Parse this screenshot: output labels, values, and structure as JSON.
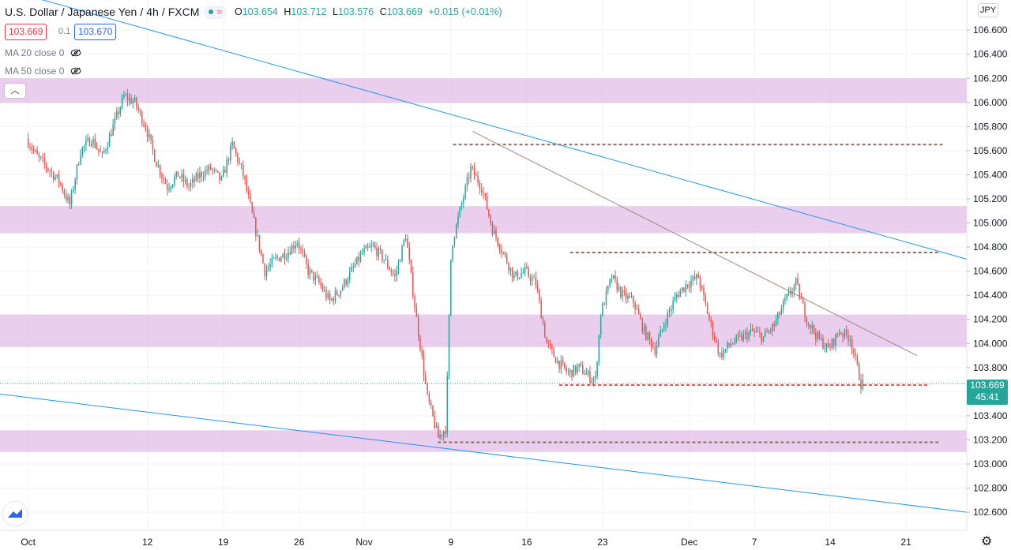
{
  "header": {
    "symbol": "U.S. Dollar / Japanese Yen",
    "interval": "4h",
    "source": "FXCM",
    "open_label": "O",
    "open": "103.654",
    "high_label": "H",
    "high": "103.712",
    "low_label": "L",
    "low": "103.576",
    "close_label": "C",
    "close": "103.669",
    "change": "+0.015 (+0.01%)"
  },
  "trade": {
    "sell": "103.669",
    "spread": "0.1",
    "buy": "103.670"
  },
  "indicators": [
    {
      "label": "MA 20 close 0"
    },
    {
      "label": "MA 50 close 0"
    }
  ],
  "currency": "JPY",
  "current_price": {
    "price": "103.669",
    "countdown": "45:41"
  },
  "colors": {
    "up": "#26a69a",
    "down": "#ef5350",
    "zone": "#e1bee7",
    "trendline": "#2196f3",
    "level": "#8d6e63"
  },
  "chart_data": {
    "type": "candlestick",
    "ylim": [
      102.45,
      106.85
    ],
    "y_ticks": [
      "102.600",
      "102.800",
      "103.000",
      "103.200",
      "103.400",
      "103.600",
      "103.800",
      "104.000",
      "104.200",
      "104.400",
      "104.600",
      "104.800",
      "105.000",
      "105.200",
      "105.400",
      "105.600",
      "105.800",
      "106.000",
      "106.200",
      "106.400",
      "106.600"
    ],
    "x_ticks": [
      {
        "label": "Oct",
        "day": 0
      },
      {
        "label": "12",
        "day": 11
      },
      {
        "label": "19",
        "day": 18
      },
      {
        "label": "26",
        "day": 25
      },
      {
        "label": "Nov",
        "day": 31
      },
      {
        "label": "9",
        "day": 39
      },
      {
        "label": "16",
        "day": 46
      },
      {
        "label": "23",
        "day": 53
      },
      {
        "label": "Dec",
        "day": 61
      },
      {
        "label": "7",
        "day": 67
      },
      {
        "label": "14",
        "day": 74
      },
      {
        "label": "21",
        "day": 81
      }
    ],
    "x_day_range": [
      -2.6,
      86.6
    ],
    "zones": [
      {
        "from": 105.995,
        "to": 106.2
      },
      {
        "from": 104.915,
        "to": 105.14
      },
      {
        "from": 103.97,
        "to": 104.24
      },
      {
        "from": 103.1,
        "to": 103.28
      }
    ],
    "horizontal_levels": [
      {
        "value": 105.65,
        "from_day": 39.2,
        "to_day": 84.5,
        "color": "level"
      },
      {
        "value": 104.755,
        "from_day": 50.0,
        "to_day": 84.0,
        "color": "level"
      },
      {
        "value": 103.655,
        "from_day": 49.0,
        "to_day": 83.2,
        "color": "down"
      },
      {
        "value": 103.18,
        "from_day": 37.8,
        "to_day": 84.0,
        "color": "level"
      }
    ],
    "trendlines": [
      {
        "from": [
          -2.6,
          106.95
        ],
        "to": [
          86.6,
          104.7
        ],
        "color": "trendline"
      },
      {
        "from": [
          -2.6,
          103.58
        ],
        "to": [
          86.6,
          102.6
        ],
        "color": "trendline"
      },
      {
        "from": [
          41.0,
          105.76
        ],
        "to": [
          82.0,
          103.9
        ],
        "color": "#a1887f"
      }
    ],
    "price_path": [
      [
        0,
        105.7
      ],
      [
        1,
        105.55
      ],
      [
        2,
        105.45
      ],
      [
        3,
        105.35
      ],
      [
        4,
        105.15
      ],
      [
        5,
        105.6
      ],
      [
        6,
        105.7
      ],
      [
        7,
        105.55
      ],
      [
        8,
        105.8
      ],
      [
        9,
        106.05
      ],
      [
        10,
        106.0
      ],
      [
        11,
        105.8
      ],
      [
        12,
        105.5
      ],
      [
        13,
        105.3
      ],
      [
        14,
        105.4
      ],
      [
        15,
        105.3
      ],
      [
        16,
        105.4
      ],
      [
        17,
        105.45
      ],
      [
        18,
        105.35
      ],
      [
        19,
        105.65
      ],
      [
        20,
        105.4
      ],
      [
        21,
        105.0
      ],
      [
        22,
        104.6
      ],
      [
        23,
        104.7
      ],
      [
        24,
        104.75
      ],
      [
        25,
        104.85
      ],
      [
        26,
        104.6
      ],
      [
        27,
        104.5
      ],
      [
        28,
        104.35
      ],
      [
        29,
        104.45
      ],
      [
        30,
        104.6
      ],
      [
        31,
        104.75
      ],
      [
        32,
        104.8
      ],
      [
        33,
        104.7
      ],
      [
        34,
        104.55
      ],
      [
        35,
        104.9
      ],
      [
        36,
        104.2
      ],
      [
        37,
        103.55
      ],
      [
        38,
        103.22
      ],
      [
        38.7,
        103.3
      ],
      [
        39.2,
        104.8
      ],
      [
        40,
        105.1
      ],
      [
        41,
        105.45
      ],
      [
        42,
        105.3
      ],
      [
        43,
        104.95
      ],
      [
        44,
        104.75
      ],
      [
        45,
        104.55
      ],
      [
        46,
        104.6
      ],
      [
        47,
        104.5
      ],
      [
        48,
        104.0
      ],
      [
        49,
        103.85
      ],
      [
        50,
        103.75
      ],
      [
        51,
        103.8
      ],
      [
        52,
        103.72
      ],
      [
        52.5,
        103.7
      ],
      [
        53,
        104.25
      ],
      [
        54,
        104.55
      ],
      [
        55,
        104.4
      ],
      [
        56,
        104.35
      ],
      [
        57,
        104.1
      ],
      [
        58,
        103.95
      ],
      [
        59,
        104.2
      ],
      [
        60,
        104.4
      ],
      [
        61,
        104.5
      ],
      [
        62,
        104.55
      ],
      [
        63,
        104.2
      ],
      [
        64,
        103.9
      ],
      [
        65,
        104.0
      ],
      [
        66,
        104.05
      ],
      [
        67,
        104.1
      ],
      [
        68,
        104.05
      ],
      [
        69,
        104.15
      ],
      [
        70,
        104.35
      ],
      [
        71,
        104.5
      ],
      [
        72,
        104.2
      ],
      [
        73,
        104.05
      ],
      [
        74,
        103.95
      ],
      [
        75,
        104.1
      ],
      [
        76,
        104.05
      ],
      [
        77,
        103.669
      ]
    ]
  }
}
